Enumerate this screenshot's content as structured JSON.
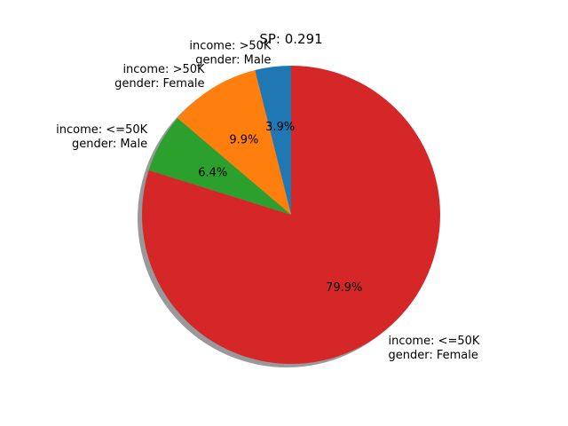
{
  "chart_data": {
    "type": "pie",
    "title": "SP: 0.291",
    "shadow": true,
    "start_angle_deg": 90,
    "direction": "counterclockwise",
    "slices": [
      {
        "label_lines": [
          "income: >50K",
          "gender: Male"
        ],
        "value": 3.9,
        "pct_label": "3.9%",
        "color": "#1f77b4"
      },
      {
        "label_lines": [
          "income: >50K",
          "gender: Female"
        ],
        "value": 9.9,
        "pct_label": "9.9%",
        "color": "#ff7f0e"
      },
      {
        "label_lines": [
          "income: <=50K",
          "gender: Male"
        ],
        "value": 6.4,
        "pct_label": "6.4%",
        "color": "#2ca02c"
      },
      {
        "label_lines": [
          "income: <=50K",
          "gender: Female"
        ],
        "value": 79.9,
        "pct_label": "79.9%",
        "color": "#d62728"
      }
    ]
  }
}
